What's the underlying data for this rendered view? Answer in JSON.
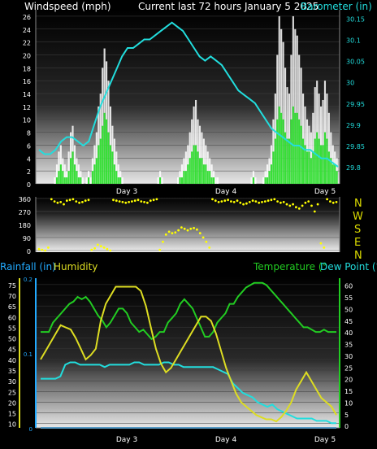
{
  "header": {
    "windspeed_label": "Windspeed (mph)",
    "current_label": "Current last 72 hours January 5 2025",
    "barometer_label": "Barometer (in)"
  },
  "lower_header": {
    "rainfall_label": "Rainfall (in)",
    "humidity_label": "Humidity",
    "temperature_label": "Temperature (°",
    "dewpoint_label": "Dew Point (°"
  },
  "compass": [
    "N",
    "W",
    "S",
    "E",
    "N"
  ],
  "colors": {
    "wind_gust": "#ffffff",
    "wind_avg": "#22dd22",
    "barometer": "#22dddd",
    "direction": "#ffff00",
    "temperature": "#22cc22",
    "dewpoint": "#22dddd",
    "humidity": "#dddd22",
    "rainfall": "#22aaff"
  },
  "chart_data": [
    {
      "type": "bar",
      "name": "windspeed",
      "xticks": [
        "Day 3",
        "Day 4",
        "Day 5"
      ],
      "ylabel": "Windspeed (mph)",
      "ylim": [
        0,
        27
      ],
      "yticks": [
        0,
        2,
        4,
        6,
        8,
        10,
        12,
        14,
        16,
        18,
        20,
        22,
        24,
        26
      ],
      "series": [
        {
          "name": "gust",
          "values": [
            0,
            1,
            3,
            5,
            6,
            4,
            3,
            2,
            5,
            8,
            9,
            6,
            4,
            3,
            2,
            1,
            0,
            1,
            2,
            1,
            4,
            6,
            8,
            12,
            14,
            18,
            21,
            19,
            16,
            12,
            9,
            7,
            5,
            3,
            2,
            1,
            0,
            0,
            0,
            0,
            0,
            0,
            0,
            0,
            0,
            0,
            0,
            0,
            0,
            0,
            0,
            0,
            0,
            1,
            2,
            1,
            0,
            0,
            0,
            0,
            0,
            0,
            0,
            1,
            2,
            3,
            4,
            5,
            6,
            8,
            10,
            12,
            13,
            10,
            9,
            8,
            7,
            6,
            5,
            4,
            3,
            2,
            1,
            1,
            0,
            0,
            0,
            0,
            0,
            0,
            0,
            0,
            0,
            0,
            0,
            0,
            0,
            0,
            0,
            0,
            1,
            2,
            1,
            0,
            0,
            0,
            1,
            2,
            3,
            4,
            6,
            10,
            14,
            20,
            26,
            24,
            22,
            18,
            15,
            14,
            20,
            26,
            24,
            23,
            20,
            18,
            14,
            12,
            10,
            9,
            8,
            11,
            15,
            16,
            14,
            12,
            13,
            16,
            14,
            11,
            8,
            6,
            5,
            4
          ]
        },
        {
          "name": "average",
          "values": [
            0,
            0,
            1,
            2,
            3,
            2,
            1,
            1,
            2,
            4,
            5,
            3,
            2,
            1,
            1,
            0,
            0,
            0,
            1,
            0,
            2,
            3,
            4,
            6,
            7,
            9,
            11,
            10,
            8,
            6,
            5,
            3,
            2,
            1,
            1,
            0,
            0,
            0,
            0,
            0,
            0,
            0,
            0,
            0,
            0,
            0,
            0,
            0,
            0,
            0,
            0,
            0,
            0,
            0,
            1,
            0,
            0,
            0,
            0,
            0,
            0,
            0,
            0,
            0,
            1,
            1,
            2,
            2,
            3,
            4,
            5,
            6,
            6,
            5,
            4,
            4,
            3,
            3,
            2,
            2,
            1,
            1,
            0,
            0,
            0,
            0,
            0,
            0,
            0,
            0,
            0,
            0,
            0,
            0,
            0,
            0,
            0,
            0,
            0,
            0,
            0,
            1,
            0,
            0,
            0,
            0,
            0,
            1,
            1,
            2,
            3,
            5,
            7,
            10,
            12,
            11,
            10,
            8,
            7,
            7,
            10,
            12,
            11,
            11,
            10,
            9,
            7,
            6,
            5,
            5,
            4,
            5,
            7,
            8,
            7,
            6,
            6,
            8,
            7,
            5,
            4,
            3,
            3,
            2
          ]
        }
      ]
    },
    {
      "type": "line",
      "name": "barometer",
      "ylabel": "Barometer (in)",
      "ylim": [
        29.76,
        30.17
      ],
      "yticks": [
        29.8,
        29.85,
        29.9,
        29.95,
        30,
        30.05,
        30.1,
        30.15
      ],
      "values": [
        29.84,
        29.83,
        29.83,
        29.84,
        29.86,
        29.87,
        29.87,
        29.86,
        29.85,
        29.86,
        29.9,
        29.94,
        29.97,
        30.0,
        30.03,
        30.06,
        30.08,
        30.08,
        30.09,
        30.1,
        30.1,
        30.11,
        30.12,
        30.13,
        30.14,
        30.13,
        30.12,
        30.1,
        30.08,
        30.06,
        30.05,
        30.06,
        30.05,
        30.04,
        30.02,
        30.0,
        29.98,
        29.97,
        29.96,
        29.95,
        29.93,
        29.91,
        29.89,
        29.88,
        29.87,
        29.86,
        29.85,
        29.85,
        29.84,
        29.84,
        29.83,
        29.82,
        29.82,
        29.81,
        29.8
      ]
    },
    {
      "type": "scatter",
      "name": "wind_direction",
      "ylim": [
        0,
        360
      ],
      "yticks": [
        0,
        90,
        180,
        270,
        360
      ],
      "values": [
        10,
        5,
        0,
        20,
        355,
        340,
        330,
        335,
        320,
        345,
        350,
        355,
        340,
        330,
        335,
        345,
        350,
        5,
        15,
        40,
        30,
        20,
        10,
        0,
        350,
        345,
        340,
        335,
        330,
        335,
        340,
        345,
        350,
        340,
        335,
        330,
        345,
        350,
        355,
        5,
        60,
        110,
        130,
        120,
        125,
        140,
        160,
        150,
        140,
        150,
        155,
        145,
        120,
        90,
        60,
        20,
        355,
        345,
        335,
        340,
        345,
        350,
        340,
        335,
        345,
        330,
        320,
        325,
        335,
        345,
        340,
        330,
        335,
        340,
        345,
        350,
        355,
        340,
        330,
        335,
        320,
        310,
        320,
        300,
        290,
        310,
        330,
        340,
        310,
        270,
        320,
        50,
        20,
        355,
        340,
        330,
        335
      ]
    },
    {
      "type": "line",
      "name": "lower",
      "xticks": [
        "Day 3",
        "Day 4",
        "Day 5"
      ],
      "ylim_left": [
        8,
        78
      ],
      "yticks_left": [
        10,
        15,
        20,
        25,
        30,
        35,
        40,
        45,
        50,
        55,
        60,
        65,
        70,
        75
      ],
      "ylim_rain": [
        0,
        0.2
      ],
      "yticks_rain": [
        0,
        0.1,
        0.2
      ],
      "ylim_right": [
        -1,
        63
      ],
      "yticks_right": [
        0,
        5,
        10,
        15,
        20,
        25,
        30,
        35,
        40,
        45,
        50,
        55,
        60
      ],
      "series": [
        {
          "name": "Temperature",
          "values": [
            40,
            40,
            40,
            44,
            46,
            48,
            50,
            52,
            53,
            55,
            54,
            55,
            53,
            50,
            47,
            45,
            42,
            44,
            47,
            50,
            50,
            48,
            44,
            42,
            40,
            41,
            39,
            37,
            38,
            40,
            40,
            44,
            46,
            48,
            52,
            54,
            52,
            50,
            46,
            42,
            38,
            38,
            40,
            44,
            46,
            48,
            52,
            52,
            55,
            57,
            59,
            60,
            61,
            61,
            61,
            60,
            58,
            56,
            54,
            52,
            50,
            48,
            46,
            44,
            42,
            42,
            41,
            40,
            40,
            41,
            40,
            40,
            40
          ]
        },
        {
          "name": "Dew Point",
          "values": [
            20,
            20,
            20,
            20,
            21,
            26,
            27,
            27,
            26,
            26,
            26,
            26,
            26,
            25,
            26,
            26,
            26,
            26,
            26,
            27,
            27,
            26,
            26,
            26,
            26,
            27,
            27,
            26,
            26,
            25,
            25,
            25,
            25,
            25,
            25,
            25,
            24,
            23,
            22,
            18,
            16,
            14,
            13,
            12,
            10,
            9,
            8,
            9,
            7,
            6,
            5,
            4,
            3,
            3,
            3,
            3,
            2,
            2,
            2,
            1,
            1
          ]
        },
        {
          "name": "Humidity",
          "values": [
            40,
            44,
            48,
            52,
            56,
            55,
            54,
            50,
            45,
            40,
            42,
            45,
            58,
            66,
            70,
            74,
            74,
            74,
            74,
            74,
            72,
            65,
            55,
            45,
            38,
            34,
            36,
            40,
            44,
            48,
            52,
            56,
            60,
            60,
            58,
            52,
            44,
            36,
            30,
            24,
            20,
            18,
            16,
            14,
            13,
            12,
            12,
            11,
            13,
            16,
            20,
            26,
            30,
            34,
            30,
            26,
            22,
            20,
            18,
            14
          ]
        },
        {
          "name": "Rainfall",
          "values": [
            0,
            0,
            0,
            0,
            0,
            0,
            0,
            0,
            0,
            0,
            0,
            0,
            0,
            0,
            0,
            0,
            0,
            0,
            0,
            0,
            0,
            0,
            0,
            0,
            0,
            0,
            0,
            0,
            0,
            0
          ]
        }
      ]
    }
  ]
}
